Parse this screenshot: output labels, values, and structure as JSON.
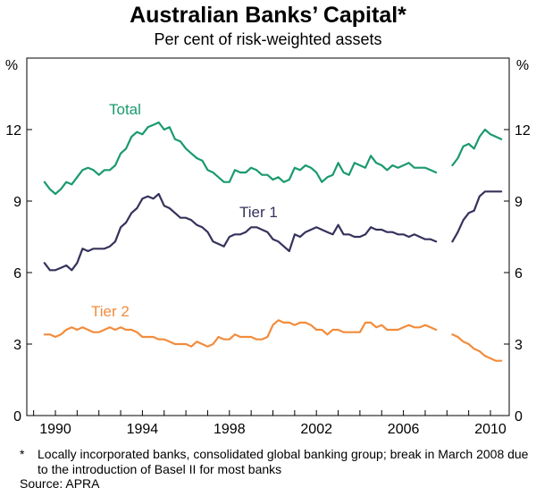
{
  "header": {
    "title": "Australian Banks’ Capital*",
    "subtitle": "Per cent of risk-weighted assets"
  },
  "footnote": {
    "marker": "*",
    "text": "Locally incorporated banks, consolidated global banking group; break in March 2008 due to the introduction of Basel II for most banks"
  },
  "source": "Source: APRA",
  "chart_data": {
    "type": "line",
    "title": "Australian Banks’ Capital*",
    "subtitle": "Per cent of risk-weighted assets",
    "y_unit_label": "%",
    "ylim": [
      0,
      15
    ],
    "yticks": [
      0,
      3,
      6,
      9,
      12
    ],
    "ytick_labels": [
      "0",
      "3",
      "6",
      "9",
      "12"
    ],
    "xlim": [
      1989,
      2011
    ],
    "xticks": [
      1990,
      1994,
      1998,
      2002,
      2006,
      2010
    ],
    "xtick_labels": [
      "1990",
      "1994",
      "1998",
      "2002",
      "2006",
      "2010"
    ],
    "break_at": 2008.25,
    "grid": false,
    "legend": "inline labels",
    "series": [
      {
        "name": "Total",
        "color": "#1a9a6c",
        "x": [
          1989.5,
          1989.75,
          1990.0,
          1990.25,
          1990.5,
          1990.75,
          1991.0,
          1991.25,
          1991.5,
          1991.75,
          1992.0,
          1992.25,
          1992.5,
          1992.75,
          1993.0,
          1993.25,
          1993.5,
          1993.75,
          1994.0,
          1994.25,
          1994.5,
          1994.75,
          1995.0,
          1995.25,
          1995.5,
          1995.75,
          1996.0,
          1996.25,
          1996.5,
          1996.75,
          1997.0,
          1997.25,
          1997.5,
          1997.75,
          1998.0,
          1998.25,
          1998.5,
          1998.75,
          1999.0,
          1999.25,
          1999.5,
          1999.75,
          2000.0,
          2000.25,
          2000.5,
          2000.75,
          2001.0,
          2001.25,
          2001.5,
          2001.75,
          2002.0,
          2002.25,
          2002.5,
          2002.75,
          2003.0,
          2003.25,
          2003.5,
          2003.75,
          2004.0,
          2004.25,
          2004.5,
          2004.75,
          2005.0,
          2005.25,
          2005.5,
          2005.75,
          2006.0,
          2006.25,
          2006.5,
          2006.75,
          2007.0,
          2007.25,
          2007.5,
          null,
          2008.25,
          2008.5,
          2008.75,
          2009.0,
          2009.25,
          2009.5,
          2009.75,
          2010.0,
          2010.25,
          2010.5
        ],
        "values": [
          9.8,
          9.5,
          9.3,
          9.5,
          9.8,
          9.7,
          10.0,
          10.3,
          10.4,
          10.3,
          10.1,
          10.3,
          10.3,
          10.5,
          11.0,
          11.2,
          11.7,
          11.9,
          11.8,
          12.1,
          12.2,
          12.3,
          12.0,
          12.1,
          11.6,
          11.5,
          11.2,
          11.0,
          10.8,
          10.7,
          10.3,
          10.2,
          10.0,
          9.8,
          9.8,
          10.3,
          10.2,
          10.2,
          10.4,
          10.3,
          10.1,
          10.1,
          9.9,
          10.0,
          9.8,
          9.9,
          10.4,
          10.3,
          10.5,
          10.4,
          10.2,
          9.8,
          10.0,
          10.1,
          10.6,
          10.2,
          10.1,
          10.6,
          10.5,
          10.4,
          10.9,
          10.6,
          10.5,
          10.3,
          10.5,
          10.4,
          10.5,
          10.6,
          10.4,
          10.4,
          10.4,
          10.3,
          10.2,
          null,
          10.5,
          10.8,
          11.3,
          11.4,
          11.2,
          11.7,
          12.0,
          11.8,
          11.7,
          11.6
        ]
      },
      {
        "name": "Tier 1",
        "color": "#35325c",
        "x": [
          1989.5,
          1989.75,
          1990.0,
          1990.25,
          1990.5,
          1990.75,
          1991.0,
          1991.25,
          1991.5,
          1991.75,
          1992.0,
          1992.25,
          1992.5,
          1992.75,
          1993.0,
          1993.25,
          1993.5,
          1993.75,
          1994.0,
          1994.25,
          1994.5,
          1994.75,
          1995.0,
          1995.25,
          1995.5,
          1995.75,
          1996.0,
          1996.25,
          1996.5,
          1996.75,
          1997.0,
          1997.25,
          1997.5,
          1997.75,
          1998.0,
          1998.25,
          1998.5,
          1998.75,
          1999.0,
          1999.25,
          1999.5,
          1999.75,
          2000.0,
          2000.25,
          2000.5,
          2000.75,
          2001.0,
          2001.25,
          2001.5,
          2001.75,
          2002.0,
          2002.25,
          2002.5,
          2002.75,
          2003.0,
          2003.25,
          2003.5,
          2003.75,
          2004.0,
          2004.25,
          2004.5,
          2004.75,
          2005.0,
          2005.25,
          2005.5,
          2005.75,
          2006.0,
          2006.25,
          2006.5,
          2006.75,
          2007.0,
          2007.25,
          2007.5,
          null,
          2008.25,
          2008.5,
          2008.75,
          2009.0,
          2009.25,
          2009.5,
          2009.75,
          2010.0,
          2010.25,
          2010.5
        ],
        "values": [
          6.4,
          6.1,
          6.1,
          6.2,
          6.3,
          6.1,
          6.4,
          7.0,
          6.9,
          7.0,
          7.0,
          7.0,
          7.1,
          7.3,
          7.9,
          8.1,
          8.5,
          8.7,
          9.1,
          9.2,
          9.1,
          9.3,
          8.8,
          8.7,
          8.5,
          8.3,
          8.3,
          8.2,
          8.0,
          7.9,
          7.7,
          7.3,
          7.2,
          7.1,
          7.5,
          7.6,
          7.6,
          7.7,
          7.9,
          7.9,
          7.8,
          7.7,
          7.4,
          7.3,
          7.1,
          6.9,
          7.6,
          7.5,
          7.7,
          7.8,
          7.9,
          7.8,
          7.7,
          7.6,
          8.0,
          7.6,
          7.6,
          7.5,
          7.5,
          7.6,
          7.9,
          7.8,
          7.8,
          7.7,
          7.7,
          7.6,
          7.6,
          7.5,
          7.6,
          7.5,
          7.4,
          7.4,
          7.3,
          null,
          7.3,
          7.7,
          8.2,
          8.5,
          8.6,
          9.2,
          9.4,
          9.4,
          9.4,
          9.4
        ]
      },
      {
        "name": "Tier 2",
        "color": "#f28c3c",
        "x": [
          1989.5,
          1989.75,
          1990.0,
          1990.25,
          1990.5,
          1990.75,
          1991.0,
          1991.25,
          1991.5,
          1991.75,
          1992.0,
          1992.25,
          1992.5,
          1992.75,
          1993.0,
          1993.25,
          1993.5,
          1993.75,
          1994.0,
          1994.25,
          1994.5,
          1994.75,
          1995.0,
          1995.25,
          1995.5,
          1995.75,
          1996.0,
          1996.25,
          1996.5,
          1996.75,
          1997.0,
          1997.25,
          1997.5,
          1997.75,
          1998.0,
          1998.25,
          1998.5,
          1998.75,
          1999.0,
          1999.25,
          1999.5,
          1999.75,
          2000.0,
          2000.25,
          2000.5,
          2000.75,
          2001.0,
          2001.25,
          2001.5,
          2001.75,
          2002.0,
          2002.25,
          2002.5,
          2002.75,
          2003.0,
          2003.25,
          2003.5,
          2003.75,
          2004.0,
          2004.25,
          2004.5,
          2004.75,
          2005.0,
          2005.25,
          2005.5,
          2005.75,
          2006.0,
          2006.25,
          2006.5,
          2006.75,
          2007.0,
          2007.25,
          2007.5,
          null,
          2008.25,
          2008.5,
          2008.75,
          2009.0,
          2009.25,
          2009.5,
          2009.75,
          2010.0,
          2010.25,
          2010.5
        ],
        "values": [
          3.4,
          3.4,
          3.3,
          3.4,
          3.6,
          3.7,
          3.6,
          3.7,
          3.6,
          3.5,
          3.5,
          3.6,
          3.7,
          3.6,
          3.7,
          3.6,
          3.6,
          3.5,
          3.3,
          3.3,
          3.3,
          3.2,
          3.2,
          3.1,
          3.0,
          3.0,
          3.0,
          2.9,
          3.1,
          3.0,
          2.9,
          3.0,
          3.3,
          3.2,
          3.2,
          3.4,
          3.3,
          3.3,
          3.3,
          3.2,
          3.2,
          3.3,
          3.8,
          4.0,
          3.9,
          3.9,
          3.8,
          3.9,
          3.9,
          3.8,
          3.6,
          3.6,
          3.4,
          3.6,
          3.6,
          3.5,
          3.5,
          3.5,
          3.5,
          3.9,
          3.9,
          3.7,
          3.8,
          3.6,
          3.6,
          3.6,
          3.7,
          3.8,
          3.7,
          3.7,
          3.8,
          3.7,
          3.6,
          null,
          3.4,
          3.3,
          3.1,
          3.0,
          2.8,
          2.7,
          2.5,
          2.4,
          2.3,
          2.3
        ]
      }
    ]
  }
}
